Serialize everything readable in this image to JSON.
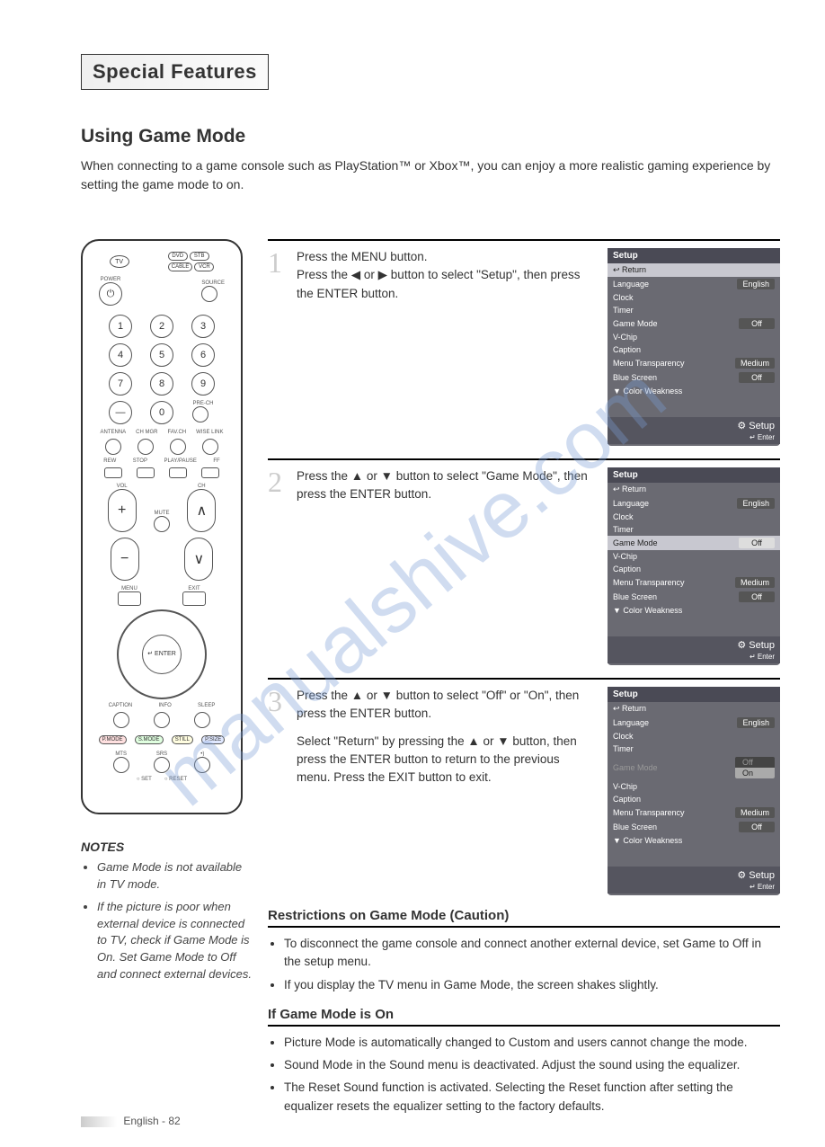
{
  "header": "Special Features",
  "section_title": "Using Game Mode",
  "intro": "When connecting to a game console such as PlayStation™ or Xbox™, you can enjoy a more realistic gaming experience by setting the game mode to on.",
  "steps": [
    {
      "num": "1",
      "text": "Press the MENU button.\nPress the ◀ or ▶ button to select \"Setup\", then press the ENTER button.",
      "osd": {
        "title": "Setup",
        "rows": [
          {
            "label": "↩ Return",
            "val": "",
            "hl": true
          },
          {
            "label": "Language",
            "val": "English"
          },
          {
            "label": "Clock",
            "val": ""
          },
          {
            "label": "Timer",
            "val": ""
          },
          {
            "label": "Game Mode",
            "val": "Off"
          },
          {
            "label": "V-Chip",
            "val": ""
          },
          {
            "label": "Caption",
            "val": ""
          },
          {
            "label": "Menu Transparency",
            "val": "Medium"
          },
          {
            "label": "Blue Screen",
            "val": "Off"
          },
          {
            "label": "▼ Color Weakness",
            "val": ""
          }
        ],
        "foot_label": "Setup",
        "foot_hint": "↵ Enter"
      }
    },
    {
      "num": "2",
      "text": "Press the ▲ or ▼ button to select \"Game Mode\", then press the ENTER button.",
      "osd": {
        "title": "Setup",
        "rows": [
          {
            "label": "↩ Return",
            "val": ""
          },
          {
            "label": "Language",
            "val": "English"
          },
          {
            "label": "Clock",
            "val": ""
          },
          {
            "label": "Timer",
            "val": ""
          },
          {
            "label": "Game Mode",
            "val": "Off",
            "hl": true
          },
          {
            "label": "V-Chip",
            "val": ""
          },
          {
            "label": "Caption",
            "val": ""
          },
          {
            "label": "Menu Transparency",
            "val": "Medium"
          },
          {
            "label": "Blue Screen",
            "val": "Off"
          },
          {
            "label": "▼ Color Weakness",
            "val": ""
          }
        ],
        "foot_label": "Setup",
        "foot_hint": "↵ Enter"
      }
    },
    {
      "num": "3",
      "text": "Press the ▲ or ▼ button to select \"Off\" or \"On\", then press the ENTER button.",
      "text2": "Select \"Return\" by pressing the ▲ or ▼ button, then press the ENTER button to return to the previous menu. Press the EXIT button to exit.",
      "osd": {
        "title": "Setup",
        "rows": [
          {
            "label": "↩ Return",
            "val": ""
          },
          {
            "label": "Language",
            "val": "English"
          },
          {
            "label": "Clock",
            "val": ""
          },
          {
            "label": "Timer",
            "val": ""
          },
          {
            "label": "Game Mode",
            "val": "",
            "dim": true,
            "options": [
              "Off",
              "On"
            ]
          },
          {
            "label": "V-Chip",
            "val": ""
          },
          {
            "label": "Caption",
            "val": ""
          },
          {
            "label": "Menu Transparency",
            "val": "Medium"
          },
          {
            "label": "Blue Screen",
            "val": "Off"
          },
          {
            "label": "▼ Color Weakness",
            "val": ""
          }
        ],
        "foot_label": "Setup",
        "foot_hint": "↵ Enter"
      }
    }
  ],
  "notes_title": "NOTES",
  "notes": [
    "Game Mode is not available in TV mode.",
    "If the picture is poor when external device is connected to TV, check if Game Mode is On. Set Game Mode to Off and connect external devices."
  ],
  "restrictions_title": "Restrictions on Game Mode (Caution)",
  "restrictions": [
    "To disconnect the game console and connect another external device, set Game to Off in the setup menu.",
    "If you display the TV menu in Game Mode, the screen shakes slightly."
  ],
  "ifon_title": "If Game Mode is On",
  "ifon": [
    "Picture Mode is automatically changed to Custom and users cannot change the mode.",
    "Sound Mode in the Sound menu is deactivated. Adjust the sound using the equalizer.",
    "The Reset Sound function is activated. Selecting the Reset function after setting the equalizer resets the equalizer setting to the factory defaults."
  ],
  "remote": {
    "top_pills_r1": [
      "DVD",
      "STB"
    ],
    "top_pills_r2": [
      "CABLE",
      "VCR"
    ],
    "tv": "TV",
    "power": "POWER",
    "source": "SOURCE",
    "nums": [
      "1",
      "2",
      "3",
      "4",
      "5",
      "6",
      "7",
      "8",
      "9",
      "0"
    ],
    "dash": "—",
    "prech": "PRE-CH",
    "row_labels": [
      "ANTENNA",
      "CH MGR",
      "FAV.CH",
      "WISE LINK"
    ],
    "transport": [
      "REW",
      "STOP",
      "PLAY/PAUSE",
      "FF"
    ],
    "vol": "VOL",
    "ch": "CH",
    "mute": "MUTE",
    "menu": "MENU",
    "exit": "EXIT",
    "enter": "↵\nENTER",
    "bottom1": [
      "CAPTION",
      "INFO",
      "SLEEP"
    ],
    "color_row": [
      "P.MODE",
      "S.MODE",
      "STILL",
      "P.SIZE"
    ],
    "bottom3": [
      "MTS",
      "SRS",
      "•)"
    ],
    "setreset": [
      "○ SET",
      "○ RESET"
    ]
  },
  "footer": "English - 82",
  "watermark": "manualshive.com",
  "colors": {
    "osd_bg": "#6a6a72",
    "osd_title": "#4a4a55",
    "osd_hl": "#c8c8d0",
    "watermark": "#7a9ed6"
  }
}
